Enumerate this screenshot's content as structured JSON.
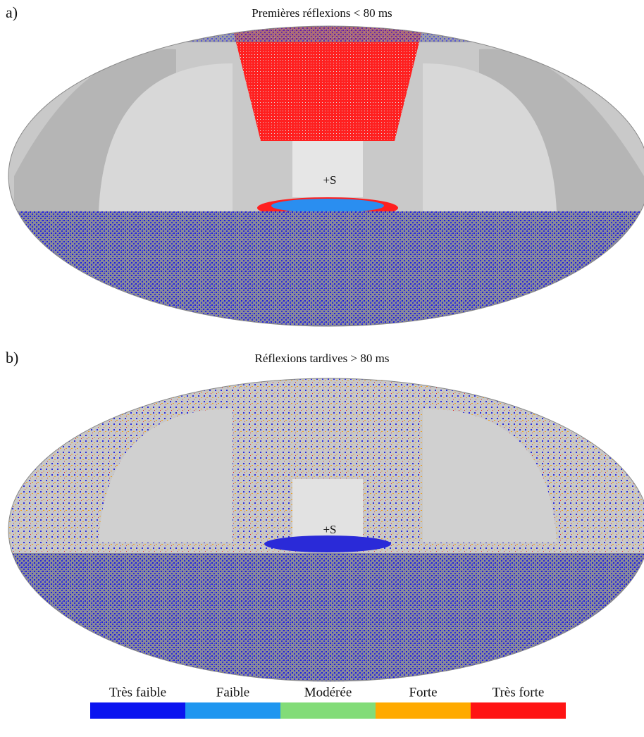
{
  "panels": [
    {
      "label": "a)",
      "title": "Premières réflexions < 80 ms",
      "source": "+S"
    },
    {
      "label": "b)",
      "title": "Réflexions tardives > 80 ms",
      "source": "+S"
    }
  ],
  "legend": {
    "items": [
      {
        "label": "Très faible",
        "color": "#0a14f0"
      },
      {
        "label": "Faible",
        "color": "#1e96f0"
      },
      {
        "label": "Modérée",
        "color": "#82dc78"
      },
      {
        "label": "Forte",
        "color": "#ffaa00"
      },
      {
        "label": "Très forte",
        "color": "#ff1414"
      }
    ]
  }
}
